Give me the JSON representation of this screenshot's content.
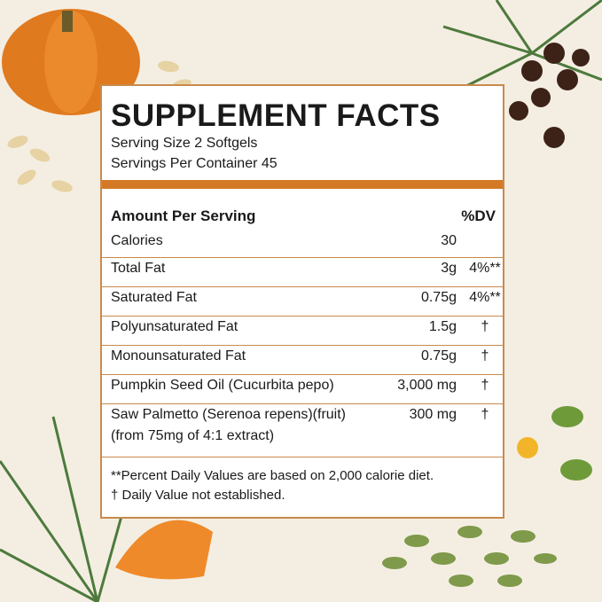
{
  "title": "SUPPLEMENT FACTS",
  "serving_size": "Serving Size 2 Softgels",
  "servings_per_container": "Servings Per Container  45",
  "header": {
    "amount": "Amount Per Serving",
    "dv": "%DV"
  },
  "rows": [
    {
      "name": "Calories",
      "amount": "30"
    },
    {
      "name": "Total Fat",
      "amount": "3g",
      "dv": "4%**"
    },
    {
      "name": "Saturated Fat",
      "amount": "0.75g",
      "dv": "4%**"
    },
    {
      "name": "Polyunsaturated Fat",
      "amount": "1.5g",
      "dv": "†"
    },
    {
      "name": "Monounsaturated Fat",
      "amount": "0.75g",
      "dv": "†"
    },
    {
      "name": "Pumpkin Seed Oil (Cucurbita pepo)",
      "amount": "3,000 mg",
      "dv": "†"
    },
    {
      "name": "Saw Palmetto (Serenoa repens)(fruit)",
      "note": "(from 75mg of 4:1 extract)",
      "amount": "300 mg",
      "dv": "†"
    }
  ],
  "footnotes": [
    "**Percent Daily Values are based on 2,000 calorie diet.",
    "† Daily Value not established."
  ]
}
